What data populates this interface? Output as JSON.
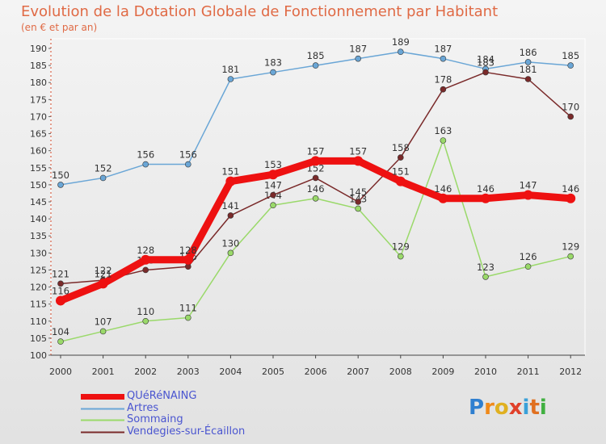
{
  "chart_data": {
    "type": "line",
    "title": "Evolution de la Dotation Globale de Fonctionnement par Habitant",
    "subtitle": "(en € et par an)",
    "x": [
      "2000",
      "2001",
      "2002",
      "2003",
      "2004",
      "2005",
      "2006",
      "2007",
      "2008",
      "2009",
      "2010",
      "2011",
      "2012"
    ],
    "ylim": [
      100,
      190
    ],
    "yticks": [
      100,
      105,
      110,
      115,
      120,
      125,
      130,
      135,
      140,
      145,
      150,
      155,
      160,
      165,
      170,
      175,
      180,
      185,
      190
    ],
    "series": [
      {
        "name": "QUéRéNAING",
        "color": "#ee1111",
        "values": [
          116,
          121,
          128,
          128,
          151,
          153,
          157,
          157,
          151,
          146,
          146,
          147,
          146
        ]
      },
      {
        "name": "Artres",
        "color": "#6aa6d6",
        "values": [
          150,
          152,
          156,
          156,
          181,
          183,
          185,
          187,
          189,
          187,
          184,
          186,
          185
        ]
      },
      {
        "name": "Sommaing",
        "color": "#9ad96a",
        "values": [
          104,
          107,
          110,
          111,
          130,
          144,
          146,
          143,
          129,
          163,
          123,
          126,
          129
        ]
      },
      {
        "name": "Vendegies-sur-Écaillon",
        "color": "#7a2a2a",
        "values": [
          121,
          122,
          125,
          126,
          141,
          147,
          152,
          145,
          158,
          178,
          183,
          181,
          170
        ]
      }
    ],
    "legend": [
      "QUéRéNAING",
      "Artres",
      "Sommaing",
      "Vendegies-sur-Écaillon"
    ],
    "legend_position": "bottom-left"
  },
  "brand": {
    "letters": [
      "P",
      "r",
      "o",
      "x",
      "i",
      "t",
      "i"
    ],
    "colors": [
      "#2f7fd0",
      "#f08a1a",
      "#e0b020",
      "#e0402a",
      "#3aa0d8",
      "#e07020",
      "#40b040"
    ]
  }
}
